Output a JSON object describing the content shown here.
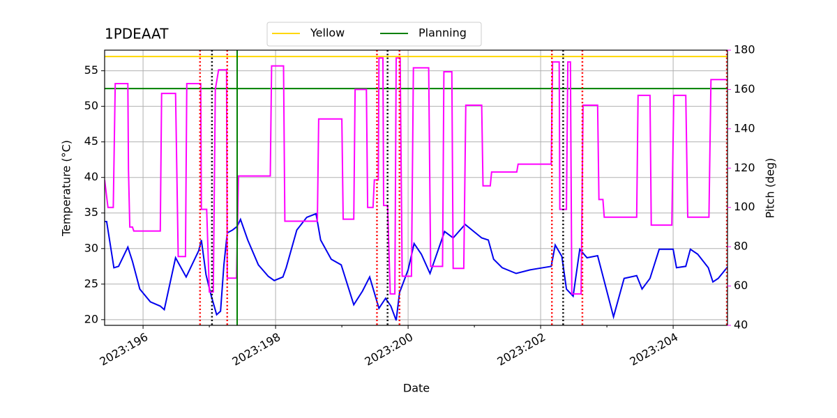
{
  "chart_data": {
    "type": "line",
    "title": "1PDEAAT",
    "x_label": "Date",
    "y_label": "Temperature (°C)",
    "y2_label": "Pitch (deg)",
    "xlim": [
      195.42,
      204.82
    ],
    "xticks": [
      {
        "value": 196,
        "label": "2023:196"
      },
      {
        "value": 198,
        "label": "2023:198"
      },
      {
        "value": 200,
        "label": "2023:200"
      },
      {
        "value": 202,
        "label": "2023:202"
      },
      {
        "value": 204,
        "label": "2023:204"
      }
    ],
    "xminorticks": [
      197,
      199,
      201,
      203
    ],
    "ylim": [
      19.2,
      57.9
    ],
    "yticks": [
      20,
      25,
      30,
      35,
      40,
      45,
      50,
      55
    ],
    "y2lim": [
      40,
      180
    ],
    "y2ticks": [
      40,
      60,
      80,
      100,
      120,
      140,
      160,
      180
    ],
    "y2_color": "#ff00ff",
    "grid": true,
    "legend": "upper center",
    "series": [
      {
        "color": "#0000ee",
        "x": [
          195.42,
          195.45,
          195.56,
          195.63,
          195.77,
          195.84,
          195.95,
          196.11,
          196.26,
          196.32,
          196.49,
          196.65,
          196.84,
          196.88,
          196.95,
          197.03,
          197.11,
          197.17,
          197.22,
          197.27,
          197.35,
          197.42,
          197.47,
          197.58,
          197.74,
          197.89,
          197.98,
          198.11,
          198.16,
          198.32,
          198.47,
          198.61,
          198.68,
          198.84,
          198.99,
          199.18,
          199.31,
          199.42,
          199.56,
          199.66,
          199.74,
          199.82,
          199.87,
          200.0,
          200.09,
          200.2,
          200.33,
          200.55,
          200.68,
          200.86,
          201.11,
          201.21,
          201.29,
          201.42,
          201.63,
          201.84,
          202.16,
          202.22,
          202.32,
          202.39,
          202.49,
          202.59,
          202.7,
          202.86,
          203.1,
          203.26,
          203.45,
          203.53,
          203.65,
          203.79,
          204.0,
          204.05,
          204.19,
          204.26,
          204.37,
          204.53,
          204.6,
          204.68,
          204.82
        ],
        "values": [
          33.8,
          33.8,
          27.3,
          27.5,
          30.2,
          28.2,
          24.3,
          22.5,
          21.9,
          21.4,
          28.7,
          26.0,
          29.7,
          31.2,
          26.3,
          23.3,
          20.7,
          21.2,
          27.7,
          32.2,
          32.6,
          33.1,
          34.1,
          31.2,
          27.7,
          26.1,
          25.5,
          26.0,
          27.3,
          32.6,
          34.4,
          34.9,
          31.2,
          28.5,
          27.7,
          22.1,
          24.0,
          26.0,
          21.6,
          23.0,
          21.9,
          19.9,
          23.8,
          27.0,
          30.7,
          29.2,
          26.5,
          32.4,
          31.5,
          33.4,
          31.5,
          31.2,
          28.5,
          27.3,
          26.5,
          27.0,
          27.5,
          30.5,
          28.9,
          24.3,
          23.3,
          29.9,
          28.7,
          29.0,
          20.4,
          25.8,
          26.2,
          24.3,
          25.8,
          29.9,
          29.9,
          27.3,
          27.5,
          29.9,
          29.2,
          27.3,
          25.3,
          25.8,
          27.4
        ]
      },
      {
        "color": "#ff00ff",
        "axis": "y2",
        "x": [
          195.42,
          195.47,
          195.55,
          195.58,
          195.77,
          195.78,
          195.8,
          195.84,
          195.86,
          196.26,
          196.28,
          196.49,
          196.53,
          196.64,
          196.66,
          196.87,
          196.88,
          196.96,
          197.0,
          197.06,
          197.09,
          197.14,
          197.26,
          197.27,
          197.41,
          197.44,
          197.92,
          197.94,
          198.12,
          198.14,
          198.63,
          198.65,
          199.0,
          199.02,
          199.18,
          199.2,
          199.37,
          199.39,
          199.47,
          199.49,
          199.55,
          199.56,
          199.62,
          199.63,
          199.69,
          199.73,
          199.8,
          199.82,
          199.88,
          199.91,
          200.05,
          200.08,
          200.31,
          200.34,
          200.52,
          200.54,
          200.66,
          200.68,
          200.84,
          200.87,
          201.11,
          201.13,
          201.24,
          201.26,
          201.64,
          201.66,
          202.16,
          202.18,
          202.28,
          202.29,
          202.39,
          202.41,
          202.45,
          202.47,
          202.61,
          202.64,
          202.86,
          202.88,
          202.94,
          202.96,
          203.45,
          203.47,
          203.65,
          203.67,
          203.98,
          204.01,
          204.19,
          204.22,
          204.54,
          204.57,
          204.82
        ],
        "values": [
          114,
          100,
          100,
          163,
          163,
          119,
          90,
          90,
          88,
          88,
          158,
          158,
          75,
          75,
          163,
          163,
          99,
          99,
          57,
          57,
          160,
          170,
          170,
          64,
          64,
          116,
          116,
          172,
          172,
          93,
          93,
          145,
          145,
          94,
          94,
          160,
          160,
          100,
          100,
          114,
          114,
          176,
          176,
          101,
          101,
          56,
          56,
          176,
          176,
          65,
          65,
          171,
          171,
          70,
          70,
          169,
          169,
          69,
          69,
          152,
          152,
          111,
          111,
          118,
          118,
          122,
          122,
          174,
          174,
          99,
          99,
          174,
          174,
          56,
          56,
          152,
          152,
          104,
          104,
          95,
          95,
          157,
          157,
          91,
          91,
          157,
          157,
          95,
          95,
          165,
          165
        ]
      }
    ],
    "hlines": [
      {
        "name": "Yellow",
        "value": 57,
        "color": "#ffd700"
      },
      {
        "name": "Planning",
        "value": 52.5,
        "color": "#008000"
      }
    ],
    "vlines": [
      {
        "x": 197.42,
        "color": "#008000",
        "style": "solid"
      },
      {
        "x": 197.04,
        "color": "#000000",
        "style": "dotted"
      },
      {
        "x": 199.69,
        "color": "#000000",
        "style": "dotted"
      },
      {
        "x": 202.34,
        "color": "#000000",
        "style": "dotted"
      },
      {
        "x": 196.86,
        "color": "#ff0000",
        "style": "dotted"
      },
      {
        "x": 197.27,
        "color": "#ff0000",
        "style": "dotted"
      },
      {
        "x": 199.53,
        "color": "#ff0000",
        "style": "dotted"
      },
      {
        "x": 199.87,
        "color": "#ff0000",
        "style": "dotted"
      },
      {
        "x": 202.17,
        "color": "#ff0000",
        "style": "dotted"
      },
      {
        "x": 202.63,
        "color": "#ff0000",
        "style": "dotted"
      },
      {
        "x": 204.81,
        "color": "#ff0000",
        "style": "dotted"
      }
    ]
  }
}
